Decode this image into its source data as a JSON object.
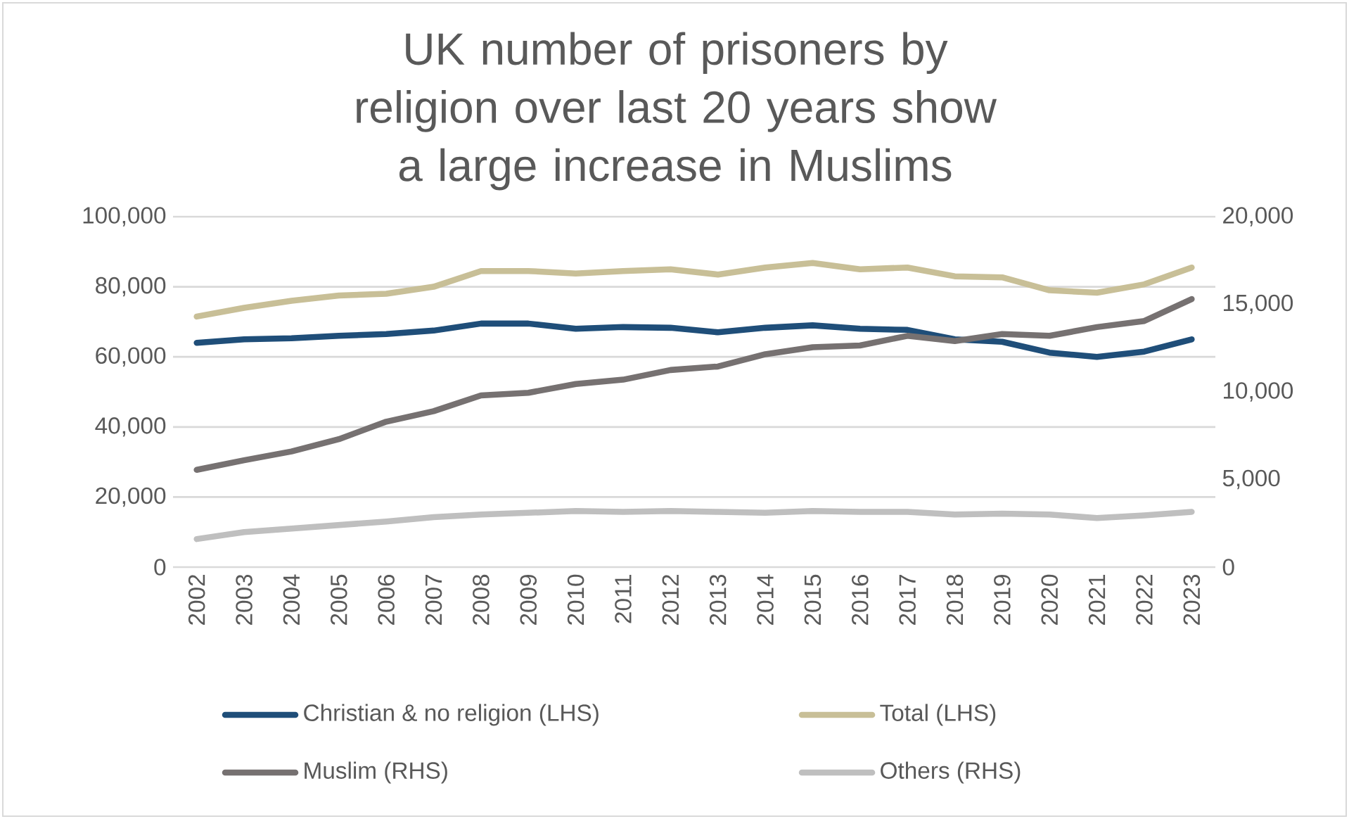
{
  "chart_data": {
    "type": "line",
    "title": "UK number of prisoners by religion over last 20 years show a large increase in Muslims",
    "categories": [
      "2002",
      "2003",
      "2004",
      "2005",
      "2006",
      "2007",
      "2008",
      "2009",
      "2010",
      "2011",
      "2012",
      "2013",
      "2014",
      "2015",
      "2016",
      "2017",
      "2018",
      "2019",
      "2020",
      "2021",
      "2022",
      "2023"
    ],
    "series": [
      {
        "name": "Christian & no religion (LHS)",
        "color": "#1f4e79",
        "values": [
          64000,
          65000,
          65300,
          66000,
          66500,
          67500,
          69500,
          69500,
          68000,
          68500,
          68300,
          67000,
          68300,
          69000,
          68000,
          67700,
          65000,
          64300,
          61200,
          60000,
          61500,
          65000
        ]
      },
      {
        "name": "Total (LHS)",
        "color": "#c8bf97",
        "values": [
          71500,
          74000,
          76000,
          77500,
          78000,
          80000,
          84500,
          84500,
          83800,
          84500,
          85000,
          83500,
          85500,
          86800,
          85000,
          85500,
          83000,
          82700,
          79000,
          78300,
          80700,
          85500
        ]
      },
      {
        "name": "Muslim (RHS)",
        "color": "#767171",
        "axis": "y2",
        "values": [
          5550,
          6100,
          6600,
          7300,
          8300,
          8900,
          9800,
          9950,
          10450,
          10700,
          11250,
          11450,
          12150,
          12550,
          12650,
          13200,
          12900,
          13300,
          13200,
          13700,
          14050,
          15300
        ]
      },
      {
        "name": "Others (RHS)",
        "color": "#bfbfbf",
        "axis": "y2",
        "values": [
          1600,
          2000,
          2200,
          2400,
          2600,
          2850,
          3000,
          3100,
          3200,
          3150,
          3200,
          3150,
          3100,
          3200,
          3150,
          3150,
          3000,
          3050,
          3000,
          2800,
          2950,
          3150
        ]
      }
    ],
    "ylim": [
      0,
      100000
    ],
    "yticks": [
      {
        "value": 0,
        "label": "0"
      },
      {
        "value": 20000,
        "label": "20,000"
      },
      {
        "value": 40000,
        "label": "40,000"
      },
      {
        "value": 60000,
        "label": "60,000"
      },
      {
        "value": 80000,
        "label": "80,000"
      },
      {
        "value": 100000,
        "label": "100,000"
      }
    ],
    "y2lim": [
      0,
      20000
    ],
    "y2ticks": [
      {
        "value": 0,
        "label": "0"
      },
      {
        "value": 5000,
        "label": "5,000"
      },
      {
        "value": 10000,
        "label": "10,000"
      },
      {
        "value": 15000,
        "label": "15,000"
      },
      {
        "value": 20000,
        "label": "20,000"
      }
    ],
    "grid": "y",
    "legend": "bottom",
    "line_style": "solid",
    "marker": "none"
  }
}
